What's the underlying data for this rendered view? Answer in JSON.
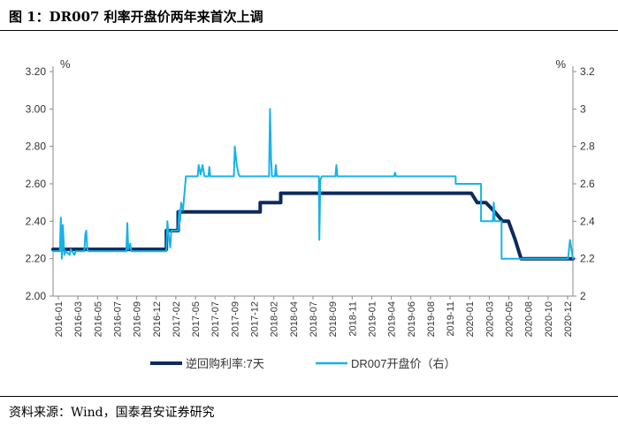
{
  "title": "图 1：DR007 利率开盘价两年来首次上调",
  "source": "资料来源：Wind，国泰君安证券研究",
  "chart_data": {
    "type": "line",
    "left_unit": "%",
    "right_unit": "%",
    "left_ylim": [
      2.0,
      3.2
    ],
    "left_ticks": [
      "3.20",
      "3.00",
      "2.80",
      "2.60",
      "2.40",
      "2.20",
      "2.00"
    ],
    "right_ylim": [
      2.0,
      3.2
    ],
    "right_ticks": [
      "3.2",
      "3",
      "2.8",
      "2.6",
      "2.4",
      "2.2",
      "2"
    ],
    "x_ticks": [
      "2016-01",
      "2016-03",
      "2016-05",
      "2016-07",
      "2016-09",
      "2016-12",
      "2017-02",
      "2017-05",
      "2017-07",
      "2017-09",
      "2017-12",
      "2018-02",
      "2018-04",
      "2018-07",
      "2018-09",
      "2018-11",
      "2019-01",
      "2019-04",
      "2019-06",
      "2019-08",
      "2019-11",
      "2020-01",
      "2020-03",
      "2020-05",
      "2020-08",
      "2020-10",
      "2020-12"
    ],
    "legend_placement": "bottom",
    "series": [
      {
        "name": "逆回购利率:7天",
        "axis": "left",
        "color": "#0b2a5e",
        "points": [
          [
            0,
            2.25
          ],
          [
            11.6,
            2.25
          ],
          [
            11.6,
            2.35
          ],
          [
            12.8,
            2.35
          ],
          [
            12.8,
            2.45
          ],
          [
            21.2,
            2.45
          ],
          [
            21.2,
            2.5
          ],
          [
            23.3,
            2.5
          ],
          [
            23.3,
            2.55
          ],
          [
            42.8,
            2.55
          ],
          [
            43.4,
            2.5
          ],
          [
            44.3,
            2.5
          ],
          [
            45.2,
            2.45
          ],
          [
            46,
            2.4
          ],
          [
            46.6,
            2.4
          ],
          [
            47.3,
            2.3
          ],
          [
            47.9,
            2.2
          ],
          [
            53.2,
            2.2
          ]
        ]
      },
      {
        "name": "DR007开盘价（右）",
        "axis": "right",
        "color": "#17b2e8",
        "points": [
          [
            0,
            2.24
          ],
          [
            0.7,
            2.24
          ],
          [
            0.8,
            2.42
          ],
          [
            0.9,
            2.2
          ],
          [
            1.0,
            2.38
          ],
          [
            1.15,
            2.22
          ],
          [
            1.3,
            2.24
          ],
          [
            1.7,
            2.22
          ],
          [
            1.8,
            2.25
          ],
          [
            2.2,
            2.22
          ],
          [
            2.3,
            2.24
          ],
          [
            3.2,
            2.24
          ],
          [
            3.3,
            2.33
          ],
          [
            3.4,
            2.35
          ],
          [
            3.5,
            2.25
          ],
          [
            3.6,
            2.24
          ],
          [
            7.5,
            2.24
          ],
          [
            7.6,
            2.39
          ],
          [
            7.7,
            2.25
          ],
          [
            7.9,
            2.28
          ],
          [
            8.0,
            2.24
          ],
          [
            11.6,
            2.24
          ],
          [
            11.7,
            2.4
          ],
          [
            11.8,
            2.34
          ],
          [
            12.0,
            2.26
          ],
          [
            12.1,
            2.35
          ],
          [
            12.8,
            2.35
          ],
          [
            12.9,
            2.46
          ],
          [
            13.0,
            2.4
          ],
          [
            13.1,
            2.5
          ],
          [
            13.3,
            2.46
          ],
          [
            13.6,
            2.64
          ],
          [
            14.8,
            2.64
          ],
          [
            14.9,
            2.7
          ],
          [
            15.1,
            2.65
          ],
          [
            15.3,
            2.7
          ],
          [
            15.5,
            2.64
          ],
          [
            15.9,
            2.64
          ],
          [
            16.0,
            2.69
          ],
          [
            16.1,
            2.64
          ],
          [
            18.5,
            2.64
          ],
          [
            18.6,
            2.8
          ],
          [
            18.8,
            2.7
          ],
          [
            19.0,
            2.65
          ],
          [
            19.1,
            2.64
          ],
          [
            22.1,
            2.64
          ],
          [
            22.2,
            3.0
          ],
          [
            22.3,
            2.75
          ],
          [
            22.4,
            2.64
          ],
          [
            22.7,
            2.64
          ],
          [
            22.8,
            2.7
          ],
          [
            22.9,
            2.64
          ],
          [
            27.2,
            2.64
          ],
          [
            27.25,
            2.3
          ],
          [
            27.35,
            2.62
          ],
          [
            27.5,
            2.64
          ],
          [
            28.9,
            2.64
          ],
          [
            29.0,
            2.7
          ],
          [
            29.1,
            2.64
          ],
          [
            34.9,
            2.64
          ],
          [
            35.0,
            2.66
          ],
          [
            35.1,
            2.64
          ],
          [
            41.2,
            2.64
          ],
          [
            41.2,
            2.6
          ],
          [
            43.8,
            2.6
          ],
          [
            43.8,
            2.4
          ],
          [
            45.0,
            2.4
          ],
          [
            45.1,
            2.5
          ],
          [
            45.2,
            2.4
          ],
          [
            45.9,
            2.4
          ],
          [
            45.9,
            2.2
          ],
          [
            52.7,
            2.2
          ],
          [
            52.9,
            2.3
          ],
          [
            53.2,
            2.2
          ]
        ]
      }
    ],
    "legend": [
      "逆回购利率:7天",
      "DR007开盘价（右）"
    ]
  }
}
